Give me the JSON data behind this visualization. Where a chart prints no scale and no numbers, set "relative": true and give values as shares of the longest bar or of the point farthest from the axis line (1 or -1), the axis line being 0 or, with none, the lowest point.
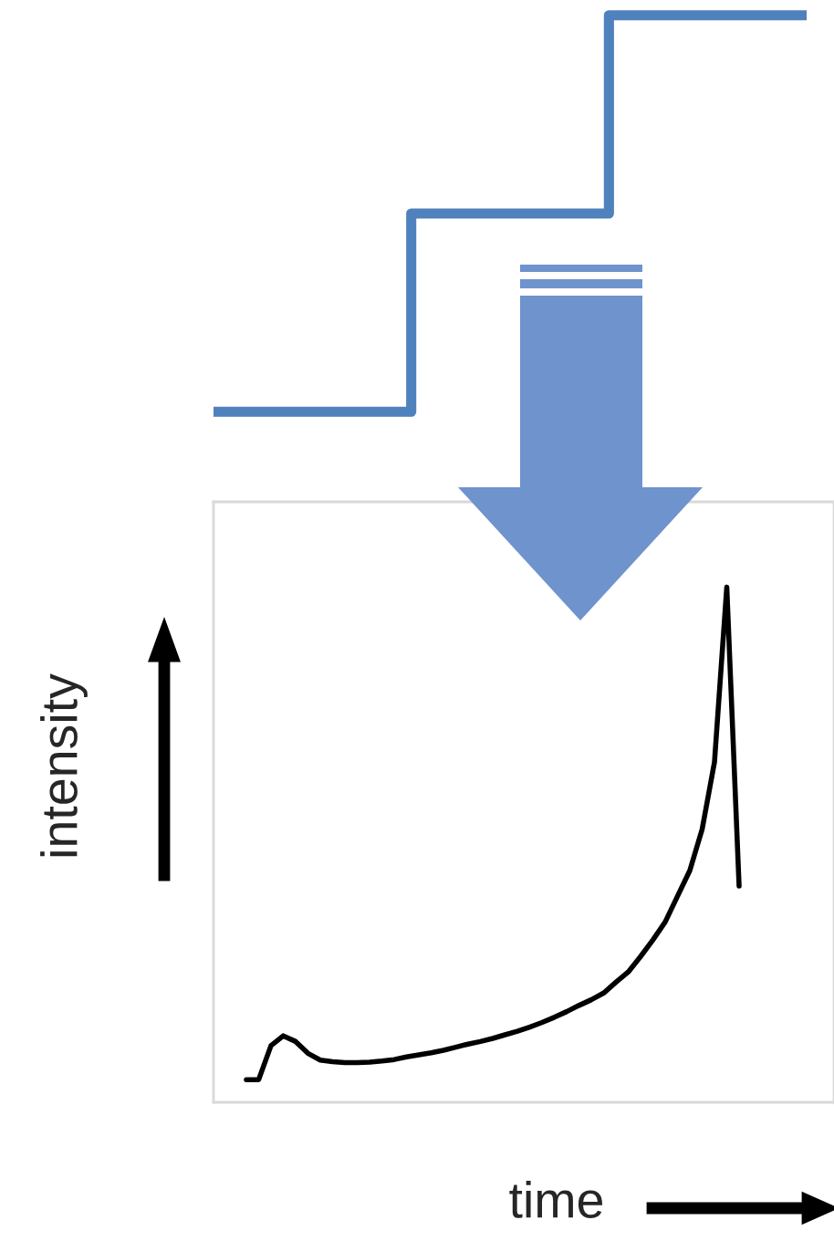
{
  "chart_data": [
    {
      "type": "step",
      "relative": true,
      "categories": [
        null,
        null,
        null,
        null
      ],
      "series": [
        {
          "color": "#4f81bd",
          "values": [
            0,
            0.5,
            1,
            1
          ]
        }
      ]
    },
    {
      "type": "line",
      "relative": true,
      "xlabel": "time",
      "ylabel": "intensity",
      "categories": [
        null,
        null,
        null,
        null,
        null,
        null,
        null,
        null,
        null,
        null,
        null,
        null,
        null,
        null,
        null,
        null,
        null,
        null,
        null,
        null,
        null,
        null,
        null,
        null,
        null,
        null,
        null,
        null,
        null,
        null,
        null,
        null,
        null,
        null,
        null,
        null,
        null,
        null,
        null,
        null,
        null
      ],
      "series": [
        {
          "color": "#000000",
          "values": [
            0.044,
            0.044,
            0.11,
            0.129,
            0.118,
            0.095,
            0.082,
            0.079,
            0.077,
            0.077,
            0.078,
            0.08,
            0.083,
            0.088,
            0.092,
            0.096,
            0.101,
            0.107,
            0.113,
            0.118,
            0.124,
            0.131,
            0.138,
            0.146,
            0.155,
            0.165,
            0.176,
            0.188,
            0.199,
            0.212,
            0.233,
            0.253,
            0.283,
            0.315,
            0.35,
            0.4,
            0.45,
            0.53,
            0.66,
            1.0,
            0.42
          ]
        }
      ]
    }
  ]
}
